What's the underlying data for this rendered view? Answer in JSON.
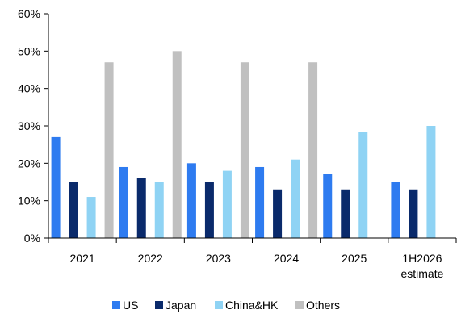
{
  "chart_data": {
    "type": "bar",
    "categories": [
      [
        "2021"
      ],
      [
        "2022"
      ],
      [
        "2023"
      ],
      [
        "2024"
      ],
      [
        "2025"
      ],
      [
        "1H2026",
        "estimate"
      ]
    ],
    "series": [
      {
        "name": "US",
        "color": "#2e7bf0",
        "values": [
          27,
          19,
          20,
          19,
          17.2,
          15
        ]
      },
      {
        "name": "Japan",
        "color": "#0a2a6b",
        "values": [
          15,
          16,
          15,
          13,
          13,
          13
        ]
      },
      {
        "name": "China&HK",
        "color": "#8fd3f4",
        "values": [
          11,
          15,
          18,
          21,
          28.3,
          30
        ]
      },
      {
        "name": "Others",
        "color": "#c0c0c0",
        "values": [
          47,
          50,
          47,
          47,
          null,
          null
        ]
      }
    ],
    "ylim": [
      0,
      60
    ],
    "yticks": [
      "0%",
      "10%",
      "20%",
      "30%",
      "40%",
      "50%",
      "60%"
    ],
    "ytick_values": [
      0,
      10,
      20,
      30,
      40,
      50,
      60
    ],
    "grid": false,
    "legend_position": "bottom"
  }
}
